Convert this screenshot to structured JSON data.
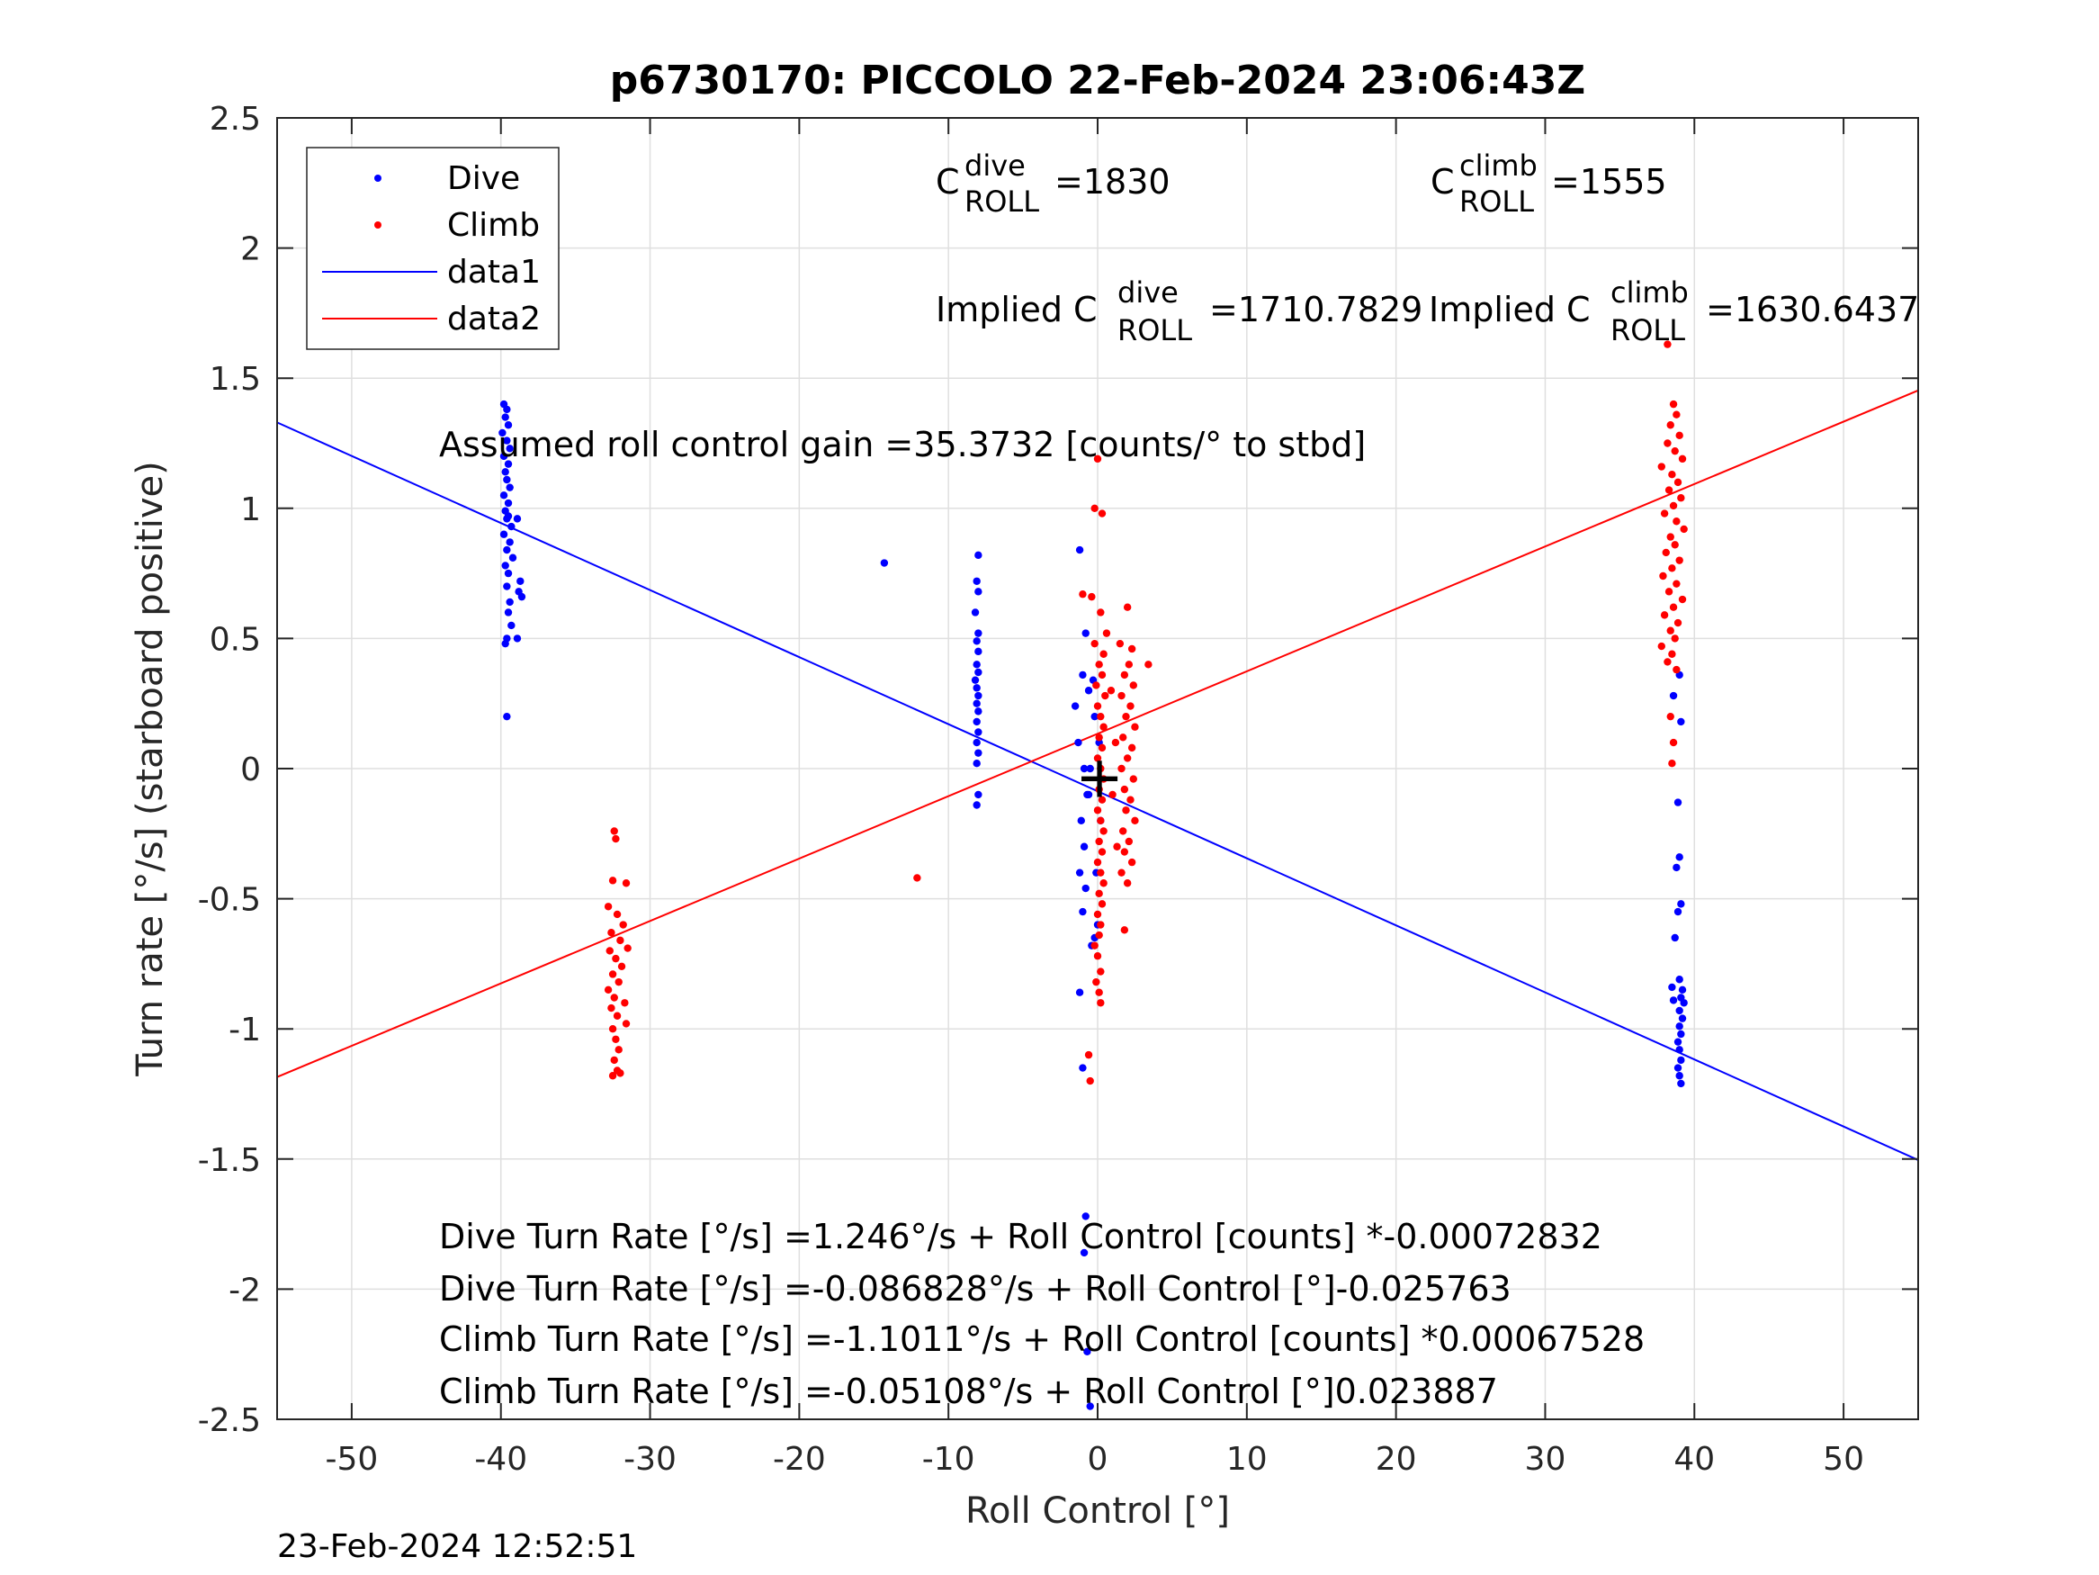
{
  "chart_data": {
    "type": "scatter",
    "title": "p6730170: PICCOLO 22-Feb-2024 23:06:43Z",
    "xlabel": "Roll Control [°]",
    "ylabel": "Turn rate [°/s] (starboard positive)",
    "xlim": [
      -55,
      55
    ],
    "ylim": [
      -2.5,
      2.5
    ],
    "x_ticks": [
      "-50",
      "-40",
      "-30",
      "-20",
      "-10",
      "0",
      "10",
      "20",
      "30",
      "40",
      "50"
    ],
    "y_ticks": [
      "-2.5",
      "-2",
      "-1.5",
      "-1",
      "-0.5",
      "0",
      "0.5",
      "1",
      "1.5",
      "2",
      "2.5"
    ],
    "grid": true,
    "legend_position": "top-left",
    "legend": [
      "Dive",
      "Climb",
      "data1",
      "data2"
    ],
    "series": [
      {
        "name": "Dive",
        "kind": "points",
        "color": "#0000ff",
        "points": [
          [
            -39.8,
            1.4
          ],
          [
            -39.6,
            1.38
          ],
          [
            -39.7,
            1.35
          ],
          [
            -39.5,
            1.32
          ],
          [
            -39.9,
            1.29
          ],
          [
            -39.6,
            1.26
          ],
          [
            -39.4,
            1.23
          ],
          [
            -39.8,
            1.2
          ],
          [
            -39.5,
            1.17
          ],
          [
            -39.7,
            1.14
          ],
          [
            -39.6,
            1.11
          ],
          [
            -39.4,
            1.08
          ],
          [
            -39.8,
            1.05
          ],
          [
            -39.5,
            1.02
          ],
          [
            -39.7,
            0.99
          ],
          [
            -39.6,
            0.96
          ],
          [
            -39.3,
            0.93
          ],
          [
            -39.8,
            0.9
          ],
          [
            -39.4,
            0.87
          ],
          [
            -39.6,
            0.84
          ],
          [
            -39.2,
            0.81
          ],
          [
            -39.7,
            0.78
          ],
          [
            -39.5,
            0.75
          ],
          [
            -38.7,
            0.72
          ],
          [
            -39.6,
            0.7
          ],
          [
            -38.6,
            0.66
          ],
          [
            -39.4,
            0.64
          ],
          [
            -38.8,
            0.68
          ],
          [
            -39.5,
            0.6
          ],
          [
            -39.3,
            0.55
          ],
          [
            -39.6,
            0.5
          ],
          [
            -39.7,
            0.48
          ],
          [
            -38.9,
            0.5
          ],
          [
            -39.6,
            0.2
          ],
          [
            -39.5,
            0.97
          ],
          [
            -38.9,
            0.96
          ],
          [
            -14.3,
            0.79
          ],
          [
            -8.0,
            0.82
          ],
          [
            -8.1,
            0.72
          ],
          [
            -8.0,
            0.68
          ],
          [
            -8.2,
            0.6
          ],
          [
            -8.0,
            0.52
          ],
          [
            -8.1,
            0.49
          ],
          [
            -8.0,
            0.45
          ],
          [
            -8.1,
            0.4
          ],
          [
            -8.0,
            0.37
          ],
          [
            -8.2,
            0.34
          ],
          [
            -8.1,
            0.31
          ],
          [
            -8.0,
            0.28
          ],
          [
            -8.1,
            0.25
          ],
          [
            -8.0,
            0.22
          ],
          [
            -8.1,
            0.18
          ],
          [
            -8.0,
            0.14
          ],
          [
            -8.1,
            0.1
          ],
          [
            -8.0,
            0.06
          ],
          [
            -8.1,
            0.02
          ],
          [
            -8.0,
            -0.1
          ],
          [
            -8.1,
            -0.14
          ],
          [
            -1.2,
            0.84
          ],
          [
            -0.8,
            0.52
          ],
          [
            -1.0,
            0.36
          ],
          [
            -1.5,
            0.24
          ],
          [
            -0.6,
            0.3
          ],
          [
            -1.3,
            0.1
          ],
          [
            -0.9,
            0.0
          ],
          [
            -0.7,
            -0.1
          ],
          [
            -1.1,
            -0.2
          ],
          [
            -0.9,
            -0.3
          ],
          [
            -1.2,
            -0.4
          ],
          [
            -0.8,
            -0.46
          ],
          [
            -1.0,
            -0.55
          ],
          [
            -0.2,
            -0.65
          ],
          [
            -0.4,
            -0.68
          ],
          [
            -1.2,
            -0.86
          ],
          [
            -1.0,
            -1.15
          ],
          [
            -0.8,
            -1.72
          ],
          [
            -0.9,
            -1.86
          ],
          [
            -0.7,
            -2.24
          ],
          [
            -0.5,
            -2.45
          ],
          [
            0.2,
            -0.2
          ],
          [
            0.1,
            0.1
          ],
          [
            -0.3,
            0.34
          ],
          [
            -0.1,
            -0.4
          ],
          [
            -0.2,
            0.2
          ],
          [
            -0.5,
            0.0
          ],
          [
            0.0,
            -0.6
          ],
          [
            -0.6,
            -0.1
          ],
          [
            39.0,
            0.36
          ],
          [
            38.6,
            0.28
          ],
          [
            39.1,
            0.18
          ],
          [
            38.9,
            -0.13
          ],
          [
            39.0,
            -0.34
          ],
          [
            38.8,
            -0.38
          ],
          [
            39.1,
            -0.52
          ],
          [
            38.9,
            -0.55
          ],
          [
            38.7,
            -0.65
          ],
          [
            39.0,
            -0.81
          ],
          [
            38.5,
            -0.84
          ],
          [
            39.2,
            -0.85
          ],
          [
            39.1,
            -0.88
          ],
          [
            38.6,
            -0.89
          ],
          [
            39.3,
            -0.9
          ],
          [
            39.0,
            -0.93
          ],
          [
            39.2,
            -0.96
          ],
          [
            39.0,
            -0.99
          ],
          [
            39.1,
            -1.02
          ],
          [
            38.9,
            -1.05
          ],
          [
            39.0,
            -1.08
          ],
          [
            39.1,
            -1.12
          ],
          [
            38.9,
            -1.15
          ],
          [
            39.0,
            -1.18
          ],
          [
            39.1,
            -1.21
          ]
        ]
      },
      {
        "name": "Climb",
        "kind": "points",
        "color": "#ff0000",
        "points": [
          [
            -32.4,
            -0.24
          ],
          [
            -32.3,
            -0.27
          ],
          [
            -32.5,
            -0.43
          ],
          [
            -31.6,
            -0.44
          ],
          [
            -32.8,
            -0.53
          ],
          [
            -32.2,
            -0.56
          ],
          [
            -31.8,
            -0.6
          ],
          [
            -32.6,
            -0.63
          ],
          [
            -32.0,
            -0.66
          ],
          [
            -31.5,
            -0.69
          ],
          [
            -32.7,
            -0.7
          ],
          [
            -32.3,
            -0.73
          ],
          [
            -31.9,
            -0.76
          ],
          [
            -32.5,
            -0.79
          ],
          [
            -32.1,
            -0.82
          ],
          [
            -32.8,
            -0.85
          ],
          [
            -32.4,
            -0.88
          ],
          [
            -31.7,
            -0.9
          ],
          [
            -32.6,
            -0.92
          ],
          [
            -32.2,
            -0.95
          ],
          [
            -31.6,
            -0.98
          ],
          [
            -32.5,
            -1.0
          ],
          [
            -32.3,
            -1.04
          ],
          [
            -32.1,
            -1.08
          ],
          [
            -32.4,
            -1.12
          ],
          [
            -32.2,
            -1.16
          ],
          [
            -32.5,
            -1.18
          ],
          [
            -32.0,
            -1.17
          ],
          [
            -12.1,
            -0.42
          ],
          [
            0.0,
            1.19
          ],
          [
            -0.2,
            1.0
          ],
          [
            0.3,
            0.98
          ],
          [
            -1.0,
            0.67
          ],
          [
            -0.4,
            0.66
          ],
          [
            0.2,
            0.6
          ],
          [
            0.6,
            0.52
          ],
          [
            -0.2,
            0.48
          ],
          [
            0.4,
            0.44
          ],
          [
            0.1,
            0.4
          ],
          [
            0.3,
            0.36
          ],
          [
            -0.1,
            0.32
          ],
          [
            0.5,
            0.28
          ],
          [
            0.0,
            0.24
          ],
          [
            0.2,
            0.2
          ],
          [
            0.4,
            0.16
          ],
          [
            0.1,
            0.12
          ],
          [
            0.3,
            0.08
          ],
          [
            0.0,
            0.04
          ],
          [
            0.2,
            0.0
          ],
          [
            0.4,
            -0.04
          ],
          [
            0.1,
            -0.08
          ],
          [
            0.3,
            -0.12
          ],
          [
            0.0,
            -0.16
          ],
          [
            0.2,
            -0.2
          ],
          [
            0.4,
            -0.24
          ],
          [
            0.1,
            -0.28
          ],
          [
            0.3,
            -0.32
          ],
          [
            0.0,
            -0.36
          ],
          [
            0.2,
            -0.4
          ],
          [
            0.4,
            -0.44
          ],
          [
            0.1,
            -0.48
          ],
          [
            0.3,
            -0.52
          ],
          [
            0.0,
            -0.56
          ],
          [
            0.2,
            -0.6
          ],
          [
            0.1,
            -0.64
          ],
          [
            -0.2,
            -0.68
          ],
          [
            0.0,
            -0.72
          ],
          [
            0.2,
            -0.78
          ],
          [
            -0.1,
            -0.82
          ],
          [
            0.1,
            -0.86
          ],
          [
            0.2,
            -0.9
          ],
          [
            -0.6,
            -1.1
          ],
          [
            -0.5,
            -1.2
          ],
          [
            2.0,
            0.62
          ],
          [
            2.3,
            0.46
          ],
          [
            1.5,
            0.48
          ],
          [
            3.4,
            0.4
          ],
          [
            2.1,
            0.4
          ],
          [
            1.8,
            0.36
          ],
          [
            2.4,
            0.32
          ],
          [
            1.6,
            0.28
          ],
          [
            2.2,
            0.24
          ],
          [
            1.9,
            0.2
          ],
          [
            2.5,
            0.16
          ],
          [
            1.7,
            0.12
          ],
          [
            2.3,
            0.08
          ],
          [
            2.0,
            0.04
          ],
          [
            1.6,
            0.0
          ],
          [
            2.4,
            -0.04
          ],
          [
            1.8,
            -0.08
          ],
          [
            2.2,
            -0.12
          ],
          [
            1.9,
            -0.16
          ],
          [
            2.5,
            -0.2
          ],
          [
            1.7,
            -0.24
          ],
          [
            2.1,
            -0.28
          ],
          [
            1.8,
            -0.32
          ],
          [
            2.3,
            -0.36
          ],
          [
            1.6,
            -0.4
          ],
          [
            2.0,
            -0.44
          ],
          [
            1.8,
            -0.62
          ],
          [
            1.2,
            0.1
          ],
          [
            1.0,
            -0.1
          ],
          [
            1.3,
            -0.3
          ],
          [
            0.9,
            0.3
          ],
          [
            38.2,
            1.63
          ],
          [
            38.6,
            1.4
          ],
          [
            38.8,
            1.36
          ],
          [
            38.4,
            1.32
          ],
          [
            39.0,
            1.28
          ],
          [
            38.2,
            1.25
          ],
          [
            38.7,
            1.22
          ],
          [
            39.2,
            1.19
          ],
          [
            37.8,
            1.16
          ],
          [
            38.5,
            1.13
          ],
          [
            38.9,
            1.1
          ],
          [
            38.3,
            1.07
          ],
          [
            39.1,
            1.04
          ],
          [
            38.6,
            1.01
          ],
          [
            38.0,
            0.98
          ],
          [
            38.8,
            0.95
          ],
          [
            39.3,
            0.92
          ],
          [
            38.4,
            0.89
          ],
          [
            38.7,
            0.86
          ],
          [
            38.1,
            0.83
          ],
          [
            39.0,
            0.8
          ],
          [
            38.5,
            0.77
          ],
          [
            37.9,
            0.74
          ],
          [
            38.8,
            0.71
          ],
          [
            38.3,
            0.68
          ],
          [
            39.2,
            0.65
          ],
          [
            38.6,
            0.62
          ],
          [
            38.0,
            0.59
          ],
          [
            38.9,
            0.56
          ],
          [
            38.4,
            0.53
          ],
          [
            38.7,
            0.5
          ],
          [
            37.8,
            0.47
          ],
          [
            38.5,
            0.44
          ],
          [
            38.2,
            0.41
          ],
          [
            38.8,
            0.38
          ],
          [
            38.4,
            0.2
          ],
          [
            38.6,
            0.1
          ],
          [
            38.5,
            0.02
          ]
        ]
      },
      {
        "name": "data1",
        "kind": "line",
        "color": "#0000ff",
        "x": [
          -55,
          55
        ],
        "y": [
          1.33,
          -1.504
        ]
      },
      {
        "name": "data2",
        "kind": "line",
        "color": "#ff0000",
        "x": [
          -55,
          55
        ],
        "y": [
          -1.185,
          1.453
        ]
      }
    ],
    "annotations": {
      "c_dive": {
        "letter": "C",
        "sup": "dive",
        "sub": "ROLL",
        "value": "=1830"
      },
      "c_climb": {
        "letter": "C",
        "sup": "climb",
        "sub": "ROLL",
        "value": "=1555"
      },
      "implied_dive": {
        "prefix": "Implied C",
        "sup": "dive",
        "sub": "ROLL",
        "value": "=1710.7829"
      },
      "implied_climb": {
        "prefix": "Implied C",
        "sup": "climb",
        "sub": "ROLL",
        "value": "=1630.6437"
      },
      "gain": "Assumed roll control gain =35.3732 [counts/° to stbd]",
      "equations": [
        "Dive Turn Rate [°/s] =1.246°/s + Roll Control [counts] *-0.00072832",
        "Dive Turn Rate [°/s] =-0.086828°/s + Roll Control [°]-0.025763",
        "Climb Turn Rate [°/s] =-1.1011°/s + Roll Control [counts] *0.00067528",
        "Climb Turn Rate [°/s] =-0.05108°/s + Roll Control [°]0.023887"
      ],
      "marker": "+"
    }
  },
  "timestamp": "23-Feb-2024 12:52:51"
}
